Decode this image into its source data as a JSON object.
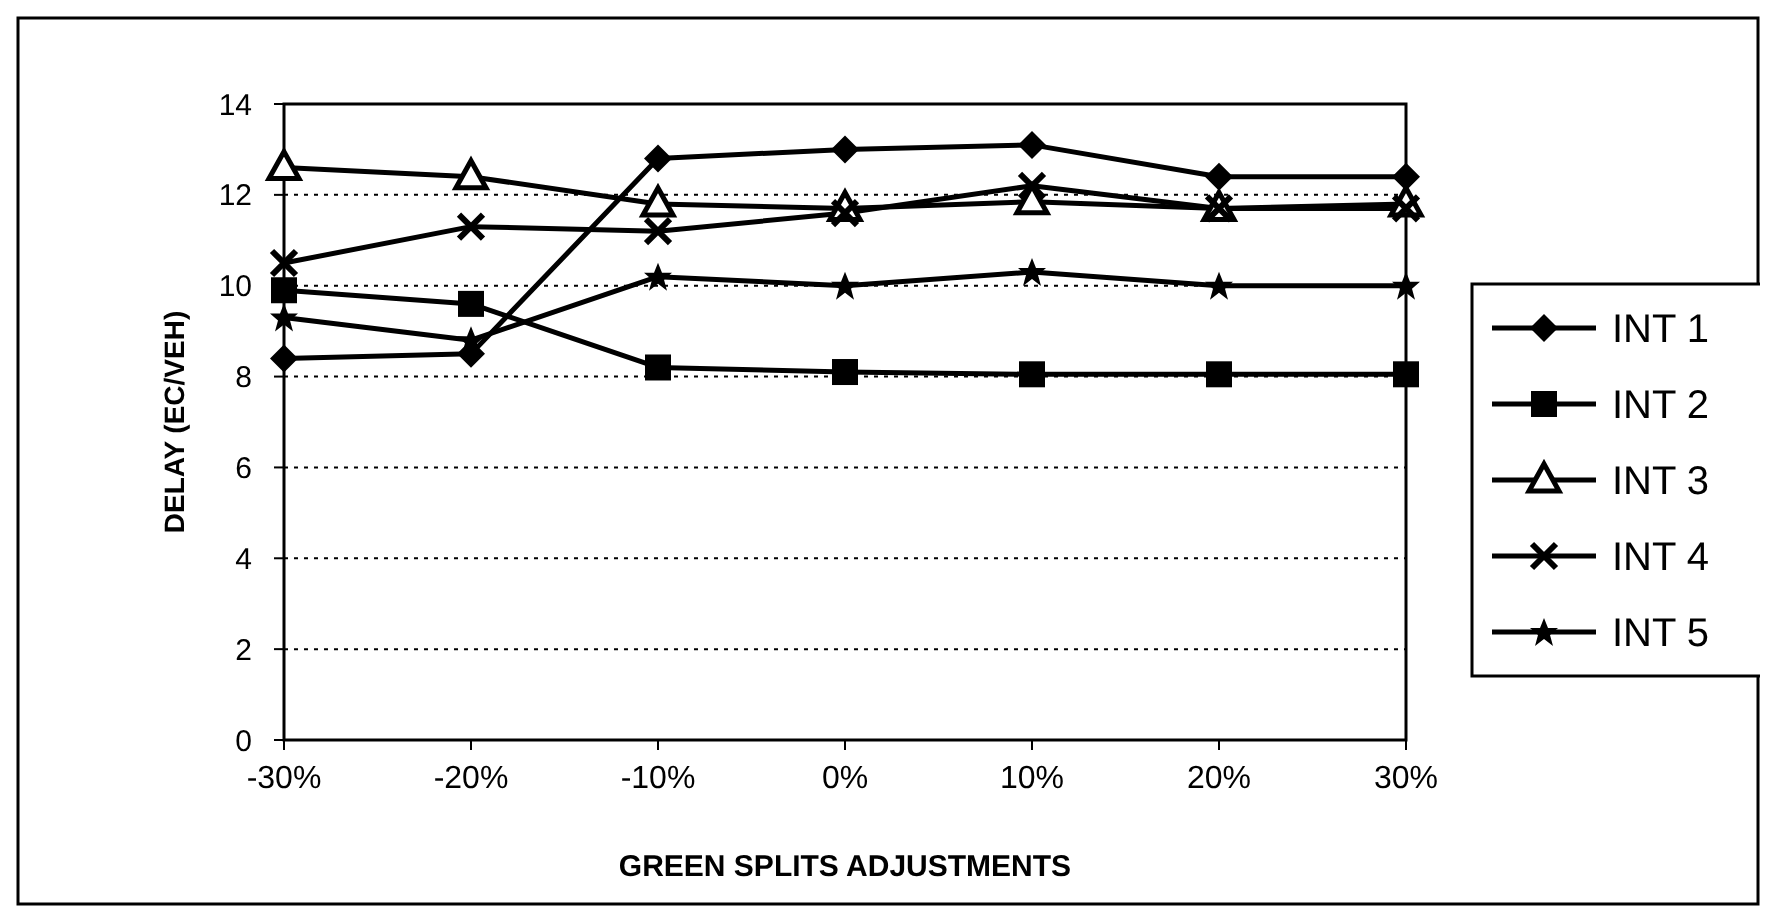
{
  "chart_data": {
    "type": "line",
    "xlabel": "GREEN SPLITS ADJUSTMENTS",
    "ylabel": "DELAY (EC/VEH)",
    "categories": [
      "-30%",
      "-20%",
      "-10%",
      "0%",
      "10%",
      "20%",
      "30%"
    ],
    "ylim": [
      0,
      14
    ],
    "yticks": [
      0,
      2,
      4,
      6,
      8,
      10,
      12,
      14
    ],
    "grid": "y",
    "legend": "right",
    "line_style": "solid",
    "series": [
      {
        "name": "INT 1",
        "color": "#000000",
        "marker": "diamond",
        "values": [
          8.4,
          8.5,
          12.8,
          13.0,
          13.1,
          12.4,
          12.4
        ]
      },
      {
        "name": "INT 2",
        "color": "#000000",
        "marker": "square",
        "values": [
          9.9,
          9.6,
          8.2,
          8.1,
          8.05,
          8.05,
          8.05
        ]
      },
      {
        "name": "INT 3",
        "color": "#000000",
        "marker": "triangle",
        "values": [
          12.6,
          12.4,
          11.8,
          11.7,
          11.85,
          11.7,
          11.8
        ]
      },
      {
        "name": "INT 4",
        "color": "#000000",
        "marker": "cross",
        "values": [
          10.5,
          11.3,
          11.2,
          11.6,
          12.2,
          11.7,
          11.7
        ]
      },
      {
        "name": "INT 5",
        "color": "#000000",
        "marker": "star",
        "values": [
          9.3,
          8.8,
          10.2,
          10.0,
          10.3,
          10.0,
          10.0
        ]
      }
    ]
  }
}
